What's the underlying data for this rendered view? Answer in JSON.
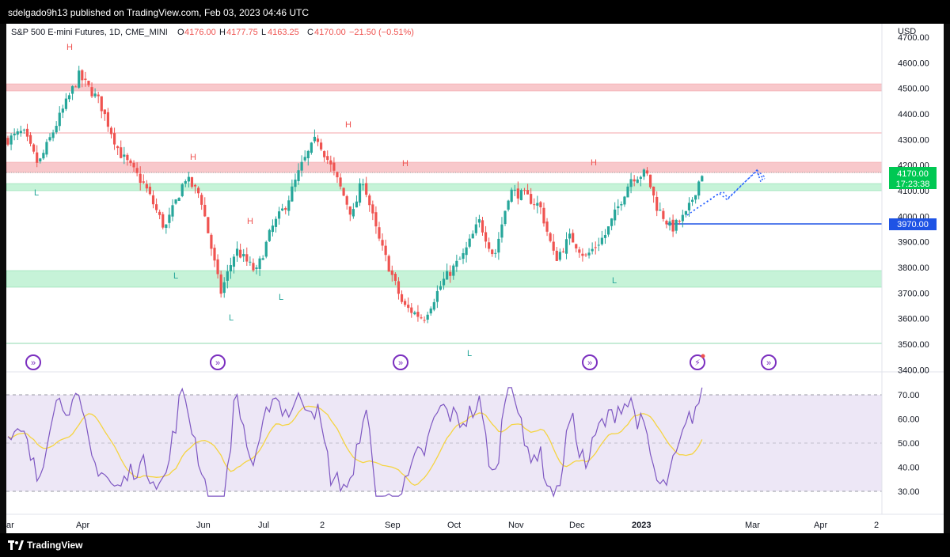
{
  "header": {
    "published": "sdelgado9h13 published on TradingView.com, Feb 03, 2023 04:46 UTC"
  },
  "legend": {
    "symbol": "S&P 500 E-mini Futures, 1D, CME_MINI",
    "o_label": "O",
    "o": "4176.00",
    "h_label": "H",
    "h": "4177.75",
    "l_label": "L",
    "l": "4163.25",
    "c_label": "C",
    "c": "4170.00",
    "chg": "−21.50 (−0.51%)"
  },
  "currency": "USD",
  "price_axis": [
    "4700.00",
    "4600.00",
    "4500.00",
    "4400.00",
    "4300.00",
    "4200.00",
    "4100.00",
    "4000.00",
    "3900.00",
    "3800.00",
    "3700.00",
    "3600.00",
    "3500.00",
    "3400.00"
  ],
  "last_price": {
    "value": "4170.00",
    "countdown": "17:23:38"
  },
  "level_label": "3970.00",
  "rsi_axis": [
    "70.00",
    "60.00",
    "50.00",
    "40.00",
    "30.00"
  ],
  "time_axis": [
    "ar",
    "Apr",
    "Jun",
    "Jul",
    "2",
    "Sep",
    "Oct",
    "Nov",
    "Dec",
    "2023",
    "Mar",
    "Apr",
    "2"
  ],
  "pivot_letters": {
    "high": "H",
    "low": "L"
  },
  "footer": {
    "brand": "TradingView"
  },
  "colors": {
    "up": "#26a69a",
    "down": "#ef5350",
    "resistance": "#f7c5c8",
    "support": "#c6f3d8",
    "rsi": "#7e57c2",
    "rsi_ma": "#f5d442",
    "rsi_band": "#ede7f6",
    "level": "#1e53e5",
    "projection": "#2962ff"
  },
  "chart_data": {
    "type": "candlestick",
    "title": "S&P 500 E-mini Futures, 1D, CME_MINI",
    "price_range": [
      3400,
      4700
    ],
    "rsi_range": [
      30,
      70
    ],
    "horizontal_levels": [
      {
        "kind": "resistance-zone",
        "from": 4495,
        "to": 4520
      },
      {
        "kind": "line",
        "value": 4330
      },
      {
        "kind": "resistance-zone",
        "from": 4185,
        "to": 4215
      },
      {
        "kind": "support-zone",
        "from": 4120,
        "to": 4145
      },
      {
        "kind": "line",
        "value": 3970
      },
      {
        "kind": "support-zone",
        "from": 3725,
        "to": 3790
      },
      {
        "kind": "line",
        "value": 3500
      }
    ],
    "pivots": [
      {
        "type": "H",
        "month": "Mar-end",
        "price": 4630
      },
      {
        "type": "L",
        "month": "Mar",
        "price": 4160
      },
      {
        "type": "H",
        "month": "May",
        "price": 4300
      },
      {
        "type": "L",
        "month": "May",
        "price": 3810
      },
      {
        "type": "H",
        "month": "Jun",
        "price": 3950
      },
      {
        "type": "L",
        "month": "Jun",
        "price": 3640
      },
      {
        "type": "L",
        "month": "Jun-end",
        "price": 3730
      },
      {
        "type": "H",
        "month": "Aug",
        "price": 4325
      },
      {
        "type": "H",
        "month": "Sep",
        "price": 4180
      },
      {
        "type": "L",
        "month": "Oct",
        "price": 3502
      },
      {
        "type": "H",
        "month": "Dec",
        "price": 4180
      },
      {
        "type": "L",
        "month": "Dec",
        "price": 3790
      }
    ],
    "close_path": [
      [
        4300,
        0
      ],
      [
        4330,
        0.03
      ],
      [
        4200,
        0.06
      ],
      [
        4380,
        0.1
      ],
      [
        4550,
        0.14
      ],
      [
        4450,
        0.18
      ],
      [
        4250,
        0.22
      ],
      [
        4120,
        0.27
      ],
      [
        3950,
        0.31
      ],
      [
        4150,
        0.35
      ],
      [
        4080,
        0.38
      ],
      [
        3700,
        0.42
      ],
      [
        3870,
        0.45
      ],
      [
        3780,
        0.49
      ],
      [
        3950,
        0.52
      ],
      [
        4050,
        0.55
      ],
      [
        4200,
        0.58
      ],
      [
        4310,
        0.61
      ],
      [
        4140,
        0.65
      ],
      [
        4000,
        0.68
      ],
      [
        4150,
        0.7
      ],
      [
        3920,
        0.73
      ],
      [
        3650,
        0.78
      ],
      [
        3600,
        0.82
      ],
      [
        3750,
        0.86
      ],
      [
        3850,
        0.9
      ],
      [
        3980,
        0.93
      ],
      [
        3840,
        0.96
      ],
      [
        4100,
        0.99
      ],
      [
        4080,
        1.02
      ],
      [
        4040,
        1.05
      ],
      [
        3830,
        1.08
      ],
      [
        3920,
        1.11
      ],
      [
        3840,
        1.14
      ],
      [
        3930,
        1.18
      ],
      [
        4150,
        1.23
      ],
      [
        4170,
        1.26
      ],
      [
        4040,
        1.28
      ],
      [
        3950,
        1.31
      ],
      [
        4010,
        1.34
      ],
      [
        4170,
        1.37
      ]
    ]
  }
}
